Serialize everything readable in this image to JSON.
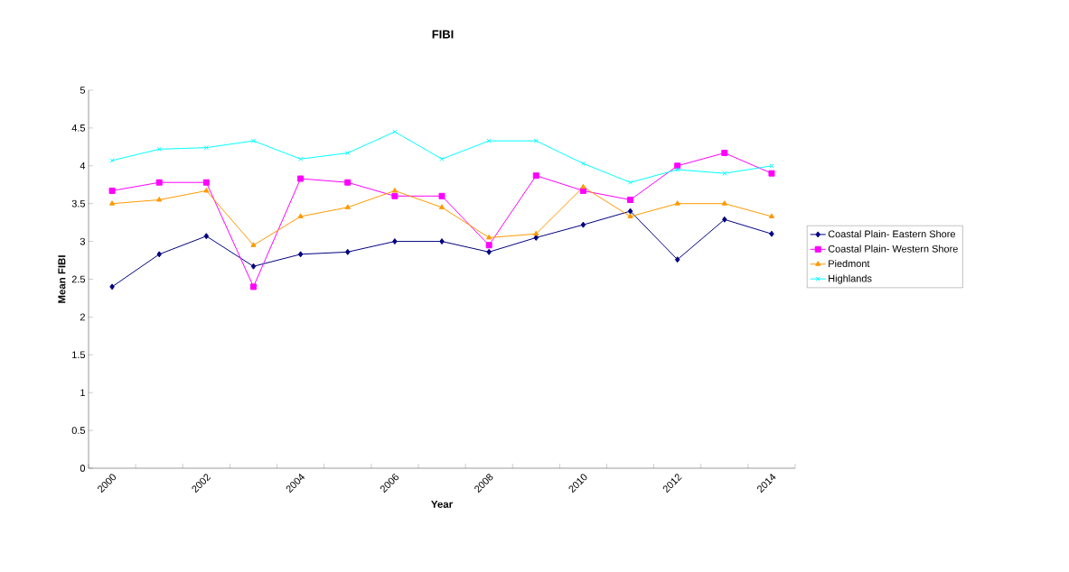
{
  "chart_data": {
    "type": "line",
    "title": "FIBI",
    "xlabel": "Year",
    "ylabel": "Mean FIBI",
    "categories": [
      "2000",
      null,
      "2002",
      null,
      "2004",
      null,
      "2006",
      null,
      "2008",
      null,
      "2010",
      null,
      "2012",
      null,
      "2014"
    ],
    "series": [
      {
        "name": "Coastal Plain- Eastern Shore",
        "color": "#000080",
        "marker": "diamond",
        "values": [
          2.4,
          2.83,
          3.07,
          2.67,
          2.83,
          2.86,
          3.0,
          3.0,
          2.86,
          3.05,
          3.22,
          3.4,
          2.76,
          3.29,
          3.1
        ]
      },
      {
        "name": "Coastal Plain- Western Shore",
        "color": "#ff00ff",
        "marker": "square",
        "values": [
          3.67,
          3.78,
          3.78,
          2.4,
          3.83,
          3.78,
          3.6,
          3.6,
          2.95,
          3.87,
          3.67,
          3.55,
          4.0,
          4.17,
          3.9
        ]
      },
      {
        "name": "Piedmont",
        "color": "#ff9900",
        "marker": "triangle",
        "values": [
          3.5,
          3.55,
          3.67,
          2.95,
          3.33,
          3.45,
          3.67,
          3.45,
          3.05,
          3.1,
          3.72,
          3.33,
          3.5,
          3.5,
          3.33
        ]
      },
      {
        "name": "Highlands",
        "color": "#00ffff",
        "marker": "cross",
        "values": [
          4.07,
          4.22,
          4.24,
          4.33,
          4.09,
          4.17,
          4.45,
          4.09,
          4.33,
          4.33,
          4.03,
          3.78,
          3.95,
          3.9,
          4.0
        ]
      }
    ],
    "ylim": [
      0,
      5
    ],
    "yticks": [
      0,
      0.5,
      1,
      1.5,
      2,
      2.5,
      3,
      3.5,
      4,
      4.5,
      5
    ],
    "grid": false,
    "legend": "right",
    "line_style": "solid"
  }
}
